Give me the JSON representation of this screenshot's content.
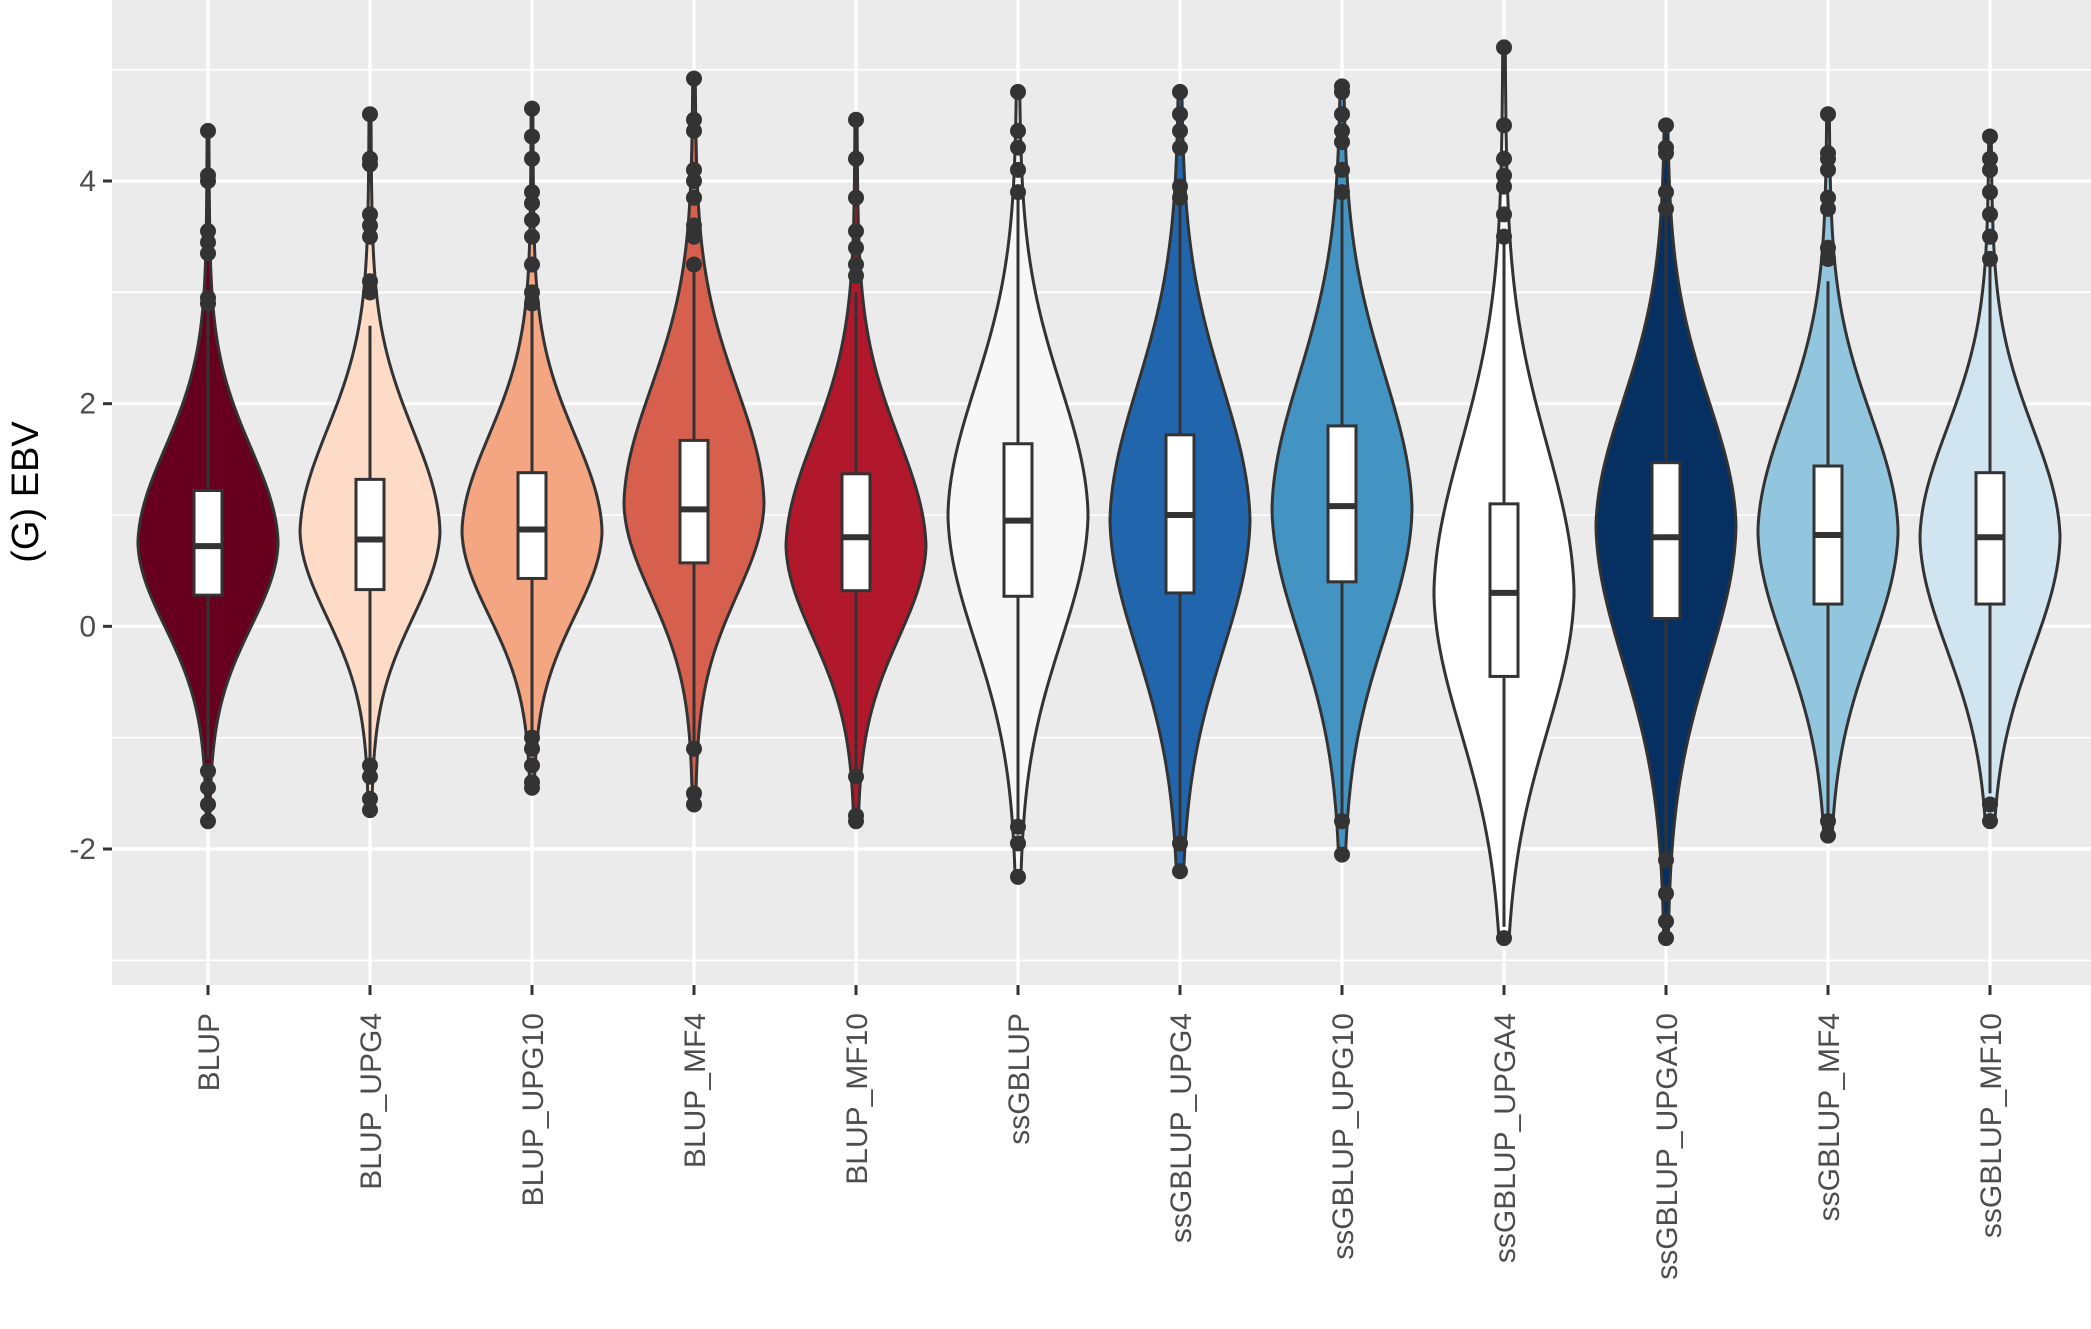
{
  "chart_data": {
    "type": "violin",
    "title": "",
    "xlabel": "",
    "ylabel": "(G) EBV",
    "ylim": [
      -3.2,
      5.6
    ],
    "yticks": [
      -2,
      0,
      2,
      4
    ],
    "grid": true,
    "categories": [
      "BLUP",
      "BLUP_UPG4",
      "BLUP_UPG10",
      "BLUP_MF4",
      "BLUP_MF10",
      "ssGBLUP",
      "ssGBLUP_UPG4",
      "ssGBLUP_UPG10",
      "ssGBLUP_UPGA4",
      "ssGBLUP_UPGA10",
      "ssGBLUP_MF4",
      "ssGBLUP_MF10"
    ],
    "colors": [
      "#67001f",
      "#fddbc7",
      "#f4a582",
      "#d6604d",
      "#b2182b",
      "#f7f7f7",
      "#2166ac",
      "#4393c3",
      "#ffffff",
      "#053061",
      "#92c5de",
      "#d1e5f0"
    ],
    "series": [
      {
        "category": "BLUP",
        "min": -1.75,
        "q1": 0.28,
        "median": 0.72,
        "q3": 1.22,
        "max": 4.45,
        "whisker_low": -1.2,
        "whisker_high": 2.85,
        "mode": 0.75,
        "outliers": [
          -1.75,
          -1.6,
          -1.45,
          -1.3,
          2.9,
          2.95,
          3.35,
          3.45,
          3.55,
          4.0,
          4.05,
          4.45
        ]
      },
      {
        "category": "BLUP_UPG4",
        "min": -1.65,
        "q1": 0.33,
        "median": 0.78,
        "q3": 1.32,
        "max": 4.6,
        "whisker_low": -1.2,
        "whisker_high": 2.7,
        "mode": 0.85,
        "outliers": [
          -1.65,
          -1.55,
          -1.35,
          -1.25,
          3.0,
          3.1,
          3.5,
          3.6,
          3.7,
          4.15,
          4.2,
          4.6
        ]
      },
      {
        "category": "BLUP_UPG10",
        "min": -1.45,
        "q1": 0.43,
        "median": 0.87,
        "q3": 1.38,
        "max": 4.65,
        "whisker_low": -0.95,
        "whisker_high": 2.85,
        "mode": 0.85,
        "outliers": [
          -1.45,
          -1.4,
          -1.25,
          -1.1,
          -1.0,
          2.9,
          3.0,
          3.25,
          3.5,
          3.65,
          3.8,
          3.9,
          4.2,
          4.4,
          4.65
        ]
      },
      {
        "category": "BLUP_MF4",
        "min": -1.6,
        "q1": 0.57,
        "median": 1.05,
        "q3": 1.67,
        "max": 4.92,
        "whisker_low": -1.05,
        "whisker_high": 3.2,
        "mode": 1.1,
        "outliers": [
          -1.6,
          -1.5,
          -1.1,
          3.25,
          3.5,
          3.6,
          3.85,
          4.0,
          4.1,
          4.45,
          4.55,
          4.92
        ]
      },
      {
        "category": "BLUP_MF10",
        "min": -1.75,
        "q1": 0.32,
        "median": 0.8,
        "q3": 1.37,
        "max": 4.55,
        "whisker_low": -1.35,
        "whisker_high": 3.0,
        "mode": 0.72,
        "outliers": [
          -1.75,
          -1.7,
          -1.35,
          3.15,
          3.25,
          3.4,
          3.55,
          3.85,
          4.2,
          4.55
        ]
      },
      {
        "category": "ssGBLUP",
        "min": -2.25,
        "q1": 0.27,
        "median": 0.95,
        "q3": 1.64,
        "max": 4.8,
        "whisker_low": -1.75,
        "whisker_high": 3.85,
        "mode": 1.0,
        "outliers": [
          -2.25,
          -1.95,
          -1.8,
          3.9,
          4.1,
          4.3,
          4.45,
          4.8
        ]
      },
      {
        "category": "ssGBLUP_UPG4",
        "min": -2.2,
        "q1": 0.3,
        "median": 1.0,
        "q3": 1.72,
        "max": 4.8,
        "whisker_low": -1.9,
        "whisker_high": 3.8,
        "mode": 0.95,
        "outliers": [
          -2.2,
          -1.95,
          3.85,
          3.95,
          4.3,
          4.45,
          4.6,
          4.8
        ]
      },
      {
        "category": "ssGBLUP_UPG10",
        "min": -2.05,
        "q1": 0.4,
        "median": 1.08,
        "q3": 1.8,
        "max": 4.85,
        "whisker_low": -1.75,
        "whisker_high": 3.9,
        "mode": 1.05,
        "outliers": [
          -2.05,
          -1.75,
          3.9,
          4.1,
          4.35,
          4.45,
          4.6,
          4.8,
          4.85
        ]
      },
      {
        "category": "ssGBLUP_UPGA4",
        "min": -2.8,
        "q1": -0.45,
        "median": 0.3,
        "q3": 1.1,
        "max": 5.2,
        "whisker_low": -2.7,
        "whisker_high": 3.45,
        "mode": 0.3,
        "outliers": [
          -2.8,
          3.5,
          3.7,
          3.95,
          4.05,
          4.2,
          4.5,
          5.2
        ]
      },
      {
        "category": "ssGBLUP_UPGA10",
        "min": -2.8,
        "q1": 0.07,
        "median": 0.8,
        "q3": 1.47,
        "max": 4.5,
        "whisker_low": -2.1,
        "whisker_high": 3.7,
        "mode": 0.9,
        "outliers": [
          -2.8,
          -2.65,
          -2.4,
          -2.1,
          3.75,
          3.9,
          4.25,
          4.3,
          4.5
        ]
      },
      {
        "category": "ssGBLUP_MF4",
        "min": -1.88,
        "q1": 0.2,
        "median": 0.82,
        "q3": 1.44,
        "max": 4.6,
        "whisker_low": -1.7,
        "whisker_high": 3.1,
        "mode": 0.85,
        "outliers": [
          -1.88,
          -1.75,
          3.3,
          3.4,
          3.75,
          3.85,
          4.1,
          4.2,
          4.25,
          4.6
        ]
      },
      {
        "category": "ssGBLUP_MF10",
        "min": -1.75,
        "q1": 0.2,
        "median": 0.8,
        "q3": 1.38,
        "max": 4.4,
        "whisker_low": -1.5,
        "whisker_high": 3.25,
        "mode": 0.8,
        "outliers": [
          -1.75,
          -1.6,
          3.3,
          3.5,
          3.7,
          3.9,
          4.1,
          4.2,
          4.4
        ]
      }
    ]
  }
}
